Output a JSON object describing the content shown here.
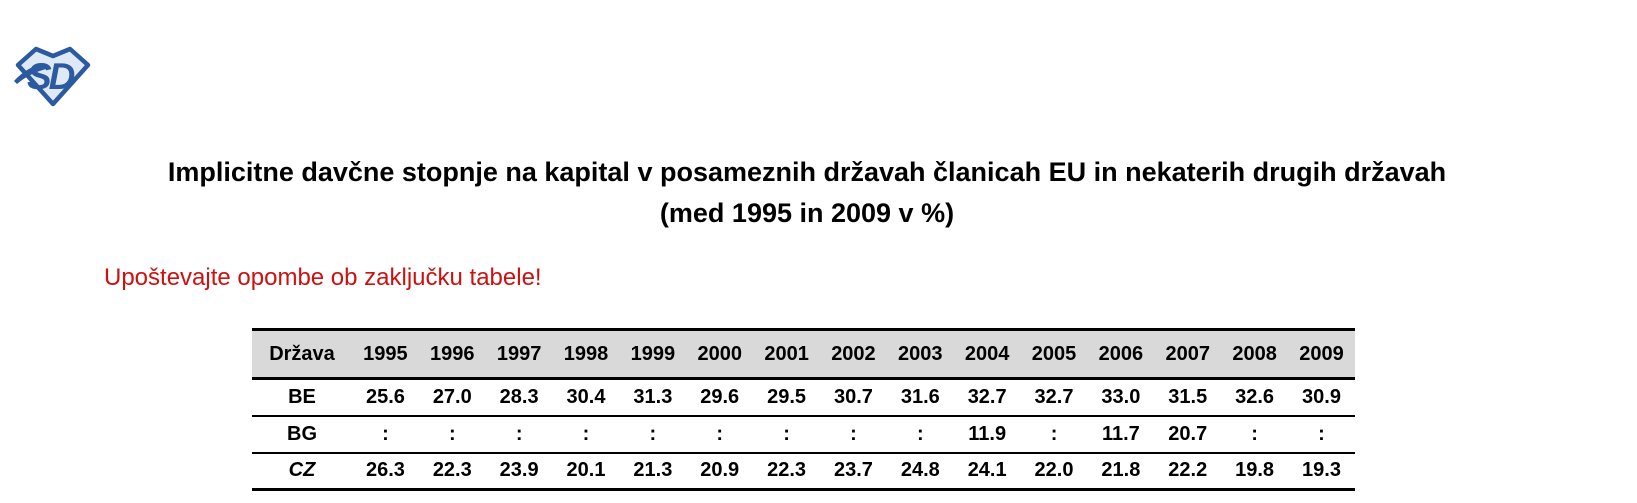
{
  "logo": {
    "text": "SD",
    "primary_color": "#2b5aa0",
    "fill_color": "#dfe9f6"
  },
  "header": {
    "title_line1": "Implicitne davčne stopnje na kapital v posameznih državah članicah EU in nekaterih drugih državah",
    "title_line2": "(med 1995 in 2009 v %)"
  },
  "note": {
    "text": "Upoštevajte opombe ob zaključku tabele!",
    "color": "#cc1111"
  },
  "table": {
    "header_bg": "#d9d9d9",
    "columns": [
      "Država",
      "1995",
      "1996",
      "1997",
      "1998",
      "1999",
      "2000",
      "2001",
      "2002",
      "2003",
      "2004",
      "2005",
      "2006",
      "2007",
      "2008",
      "2009"
    ],
    "rows": [
      {
        "country": "BE",
        "style": "bold",
        "values": [
          "25.6",
          "27.0",
          "28.3",
          "30.4",
          "31.3",
          "29.6",
          "29.5",
          "30.7",
          "31.6",
          "32.7",
          "32.7",
          "33.0",
          "31.5",
          "32.6",
          "30.9"
        ]
      },
      {
        "country": "BG",
        "style": "bold",
        "values": [
          ":",
          ":",
          ":",
          ":",
          ":",
          ":",
          ":",
          ":",
          ":",
          "11.9",
          ":",
          "11.7",
          "20.7",
          ":",
          ":"
        ]
      },
      {
        "country": "CZ",
        "style": "bold-italic",
        "values": [
          "26.3",
          "22.3",
          "23.9",
          "20.1",
          "21.3",
          "20.9",
          "22.3",
          "23.7",
          "24.8",
          "24.1",
          "22.0",
          "21.8",
          "22.2",
          "19.8",
          "19.3"
        ]
      }
    ]
  }
}
